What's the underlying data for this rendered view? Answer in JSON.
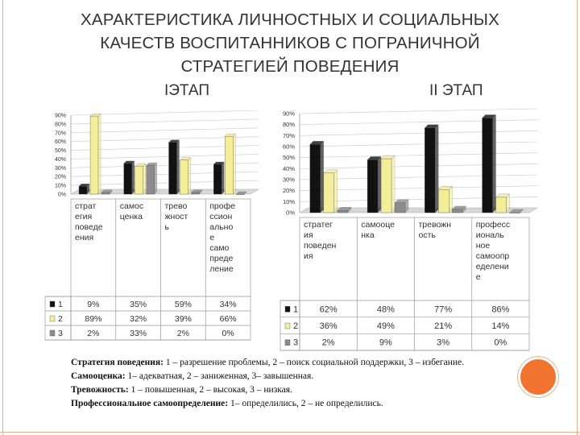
{
  "slide": {
    "title_lines": [
      "ХАРАКТЕРИСТИКА ЛИЧНОСТНЫХ И СОЦИАЛЬНЫХ",
      "КАЧЕСТВ ВОСПИТАННИКОВ  С ПОГРАНИЧНОЙ",
      "СТРАТЕГИЕЙ ПОВЕДЕНИЯ"
    ],
    "stage1_label": "IЭТАП",
    "stage2_label": "II ЭТАП",
    "notes": [
      {
        "term": "Стратегия поведения:",
        "text": " 1 – разрешение проблемы, 2 – поиск социальной поддержки, 3 – избегание."
      },
      {
        "term": "Самооценка:",
        "text": " 1– адекватная, 2 – заниженная, 3– завышенная."
      },
      {
        "term": "Тревожность:",
        "text": " 1 – повышенная, 2 – высокая, 3 – низкая."
      },
      {
        "term": "Профессиональное самоопределение:",
        "text": " 1– определились, 2 – не определились."
      }
    ]
  },
  "colors": {
    "series1": "#111111",
    "series2": "#f3ee9a",
    "series3": "#8c8c8c",
    "accent": "#f2732f"
  },
  "chart_data": [
    {
      "type": "bar",
      "title": "IЭТАП",
      "y_ticks": [
        "0%",
        "10%",
        "20%",
        "30%",
        "40%",
        "50%",
        "60%",
        "70%",
        "80%",
        "90%"
      ],
      "ylim": [
        0,
        90
      ],
      "categories": [
        [
          "страт",
          "егия",
          "поведе",
          "ения"
        ],
        [
          "самос",
          "ценка"
        ],
        [
          "трево",
          "жност",
          "ь"
        ],
        [
          "профе",
          "ссион",
          "ально",
          "е",
          "само",
          "преде",
          "ление"
        ]
      ],
      "series": [
        {
          "name": "1",
          "values": [
            9,
            35,
            59,
            34
          ],
          "labels": [
            "9%",
            "35%",
            "59%",
            "34%"
          ]
        },
        {
          "name": "2",
          "values": [
            89,
            32,
            39,
            66
          ],
          "labels": [
            "89%",
            "32%",
            "39%",
            "66%"
          ]
        },
        {
          "name": "3",
          "values": [
            2,
            33,
            2,
            0
          ],
          "labels": [
            "2%",
            "33%",
            "2%",
            "0%"
          ]
        }
      ]
    },
    {
      "type": "bar",
      "title": "II ЭТАП",
      "y_ticks": [
        "0%",
        "10%",
        "20%",
        "30%",
        "40%",
        "50%",
        "60%",
        "70%",
        "80%",
        "90%"
      ],
      "ylim": [
        0,
        90
      ],
      "categories": [
        [
          "стратег",
          "ия",
          "поведен",
          "ия"
        ],
        [
          "самооце",
          "нка"
        ],
        [
          "тревожн",
          "ость"
        ],
        [
          "професс",
          "иональ",
          "ное",
          "самоопр",
          "еделени",
          "е"
        ]
      ],
      "series": [
        {
          "name": "1",
          "values": [
            62,
            48,
            77,
            86
          ],
          "labels": [
            "62%",
            "48%",
            "77%",
            "86%"
          ]
        },
        {
          "name": "2",
          "values": [
            36,
            49,
            21,
            14
          ],
          "labels": [
            "36%",
            "49%",
            "21%",
            "14%"
          ]
        },
        {
          "name": "3",
          "values": [
            2,
            9,
            3,
            0
          ],
          "labels": [
            "2%",
            "9%",
            "3%",
            "0%"
          ]
        }
      ]
    }
  ]
}
